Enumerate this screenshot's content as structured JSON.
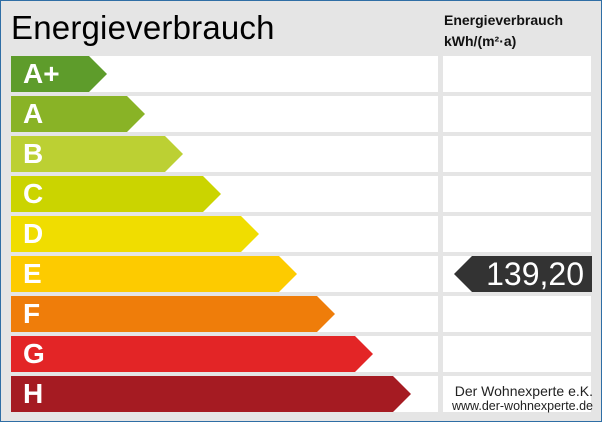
{
  "title": "Energieverbrauch",
  "column_header": {
    "line1": "Energieverbrauch",
    "line2": "kWh/(m²·a)"
  },
  "classes": [
    {
      "label": "A+",
      "color": "#5e9c2b"
    },
    {
      "label": "A",
      "color": "#89b326"
    },
    {
      "label": "B",
      "color": "#bcd033"
    },
    {
      "label": "C",
      "color": "#cbd400"
    },
    {
      "label": "D",
      "color": "#f0dd00"
    },
    {
      "label": "E",
      "color": "#fdcb00"
    },
    {
      "label": "F",
      "color": "#ef7d0a"
    },
    {
      "label": "G",
      "color": "#e32526"
    },
    {
      "label": "H",
      "color": "#a51b22"
    }
  ],
  "value": {
    "text": "139,20",
    "class": "E",
    "color": "#333333"
  },
  "footer": {
    "company": "Der Wohnexperte e.K.",
    "website": "www.der-wohnexperte.de"
  }
}
